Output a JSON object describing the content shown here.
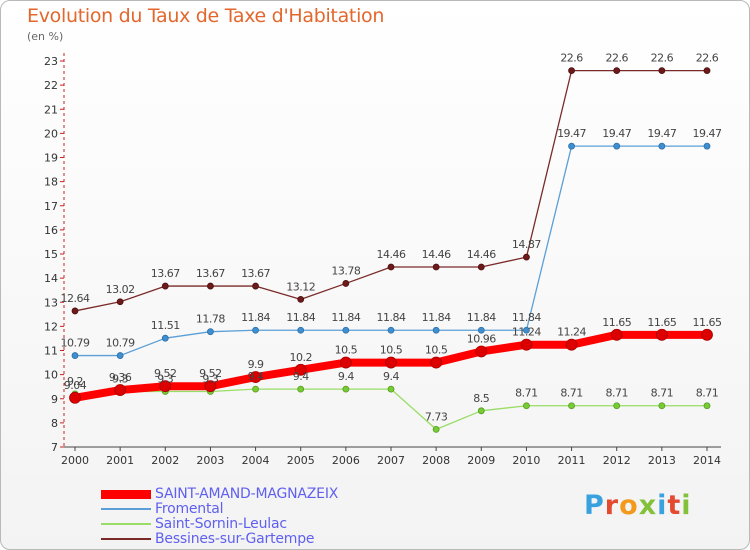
{
  "title": "Evolution du Taux de Taxe d'Habitation",
  "subtitle": "(en %)",
  "brand": "Proxiti",
  "chart_data": {
    "type": "line",
    "title": "Evolution du Taux de Taxe d'Habitation",
    "subtitle": "(en %)",
    "xlabel": "",
    "ylabel": "(en %)",
    "x": [
      "2000",
      "2001",
      "2002",
      "2003",
      "2004",
      "2005",
      "2006",
      "2007",
      "2008",
      "2009",
      "2010",
      "2011",
      "2012",
      "2013",
      "2014"
    ],
    "ylim": [
      7,
      23
    ],
    "yticks": [
      7,
      8,
      9,
      10,
      11,
      12,
      13,
      14,
      15,
      16,
      17,
      18,
      19,
      20,
      21,
      22,
      23
    ],
    "grid": false,
    "legend_position": "bottom-left",
    "series": [
      {
        "name": "SAINT-AMAND-MAGNAZEIX",
        "color": "#ff0000",
        "values": [
          9.04,
          9.36,
          9.52,
          9.52,
          9.9,
          10.2,
          10.5,
          10.5,
          10.5,
          10.96,
          11.24,
          11.24,
          11.65,
          11.65,
          11.65
        ],
        "labels": [
          "9.04",
          "9.36",
          "9.52",
          "9.52",
          "9.9",
          "10.2",
          "10.5",
          "10.5",
          "10.5",
          "10.96",
          "11.24",
          "11.24",
          "11.65",
          "11.65",
          "11.65"
        ]
      },
      {
        "name": "Fromental",
        "color": "#5b9fd6",
        "values": [
          10.79,
          10.79,
          11.51,
          11.78,
          11.84,
          11.84,
          11.84,
          11.84,
          11.84,
          11.84,
          11.84,
          19.47,
          19.47,
          19.47,
          19.47
        ],
        "labels": [
          "10.79",
          "10.79",
          "11.51",
          "11.78",
          "11.84",
          "11.84",
          "11.84",
          "11.84",
          "11.84",
          "11.84",
          "11.84",
          "19.47",
          "19.47",
          "19.47",
          "19.47"
        ]
      },
      {
        "name": "Saint-Sornin-Leulac",
        "color": "#99dd66",
        "values": [
          9.2,
          9.3,
          9.3,
          9.3,
          9.4,
          9.4,
          9.4,
          9.4,
          7.73,
          8.5,
          8.71,
          8.71,
          8.71,
          8.71,
          8.71
        ],
        "labels": [
          "9.2",
          "9.3",
          "9.3",
          "9.3",
          "9.4",
          "9.4",
          "9.4",
          "9.4",
          "7.73",
          "8.5",
          "8.71",
          "8.71",
          "8.71",
          "8.71",
          "8.71"
        ]
      },
      {
        "name": "Bessines-sur-Gartempe",
        "color": "#7b2a2a",
        "values": [
          12.64,
          13.02,
          13.67,
          13.67,
          13.67,
          13.12,
          13.78,
          14.46,
          14.46,
          14.46,
          14.87,
          22.6,
          22.6,
          22.6,
          22.6
        ],
        "labels": [
          "12.64",
          "13.02",
          "13.67",
          "13.67",
          "13.67",
          "13.12",
          "13.78",
          "14.46",
          "14.46",
          "14.46",
          "14.87",
          "22.6",
          "22.6",
          "22.6",
          "22.6"
        ]
      }
    ]
  }
}
